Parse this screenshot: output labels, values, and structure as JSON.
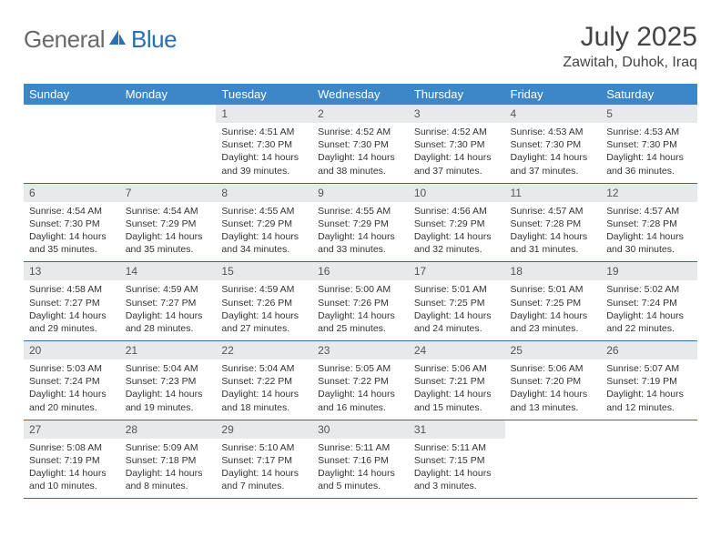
{
  "brand": {
    "general": "General",
    "blue": "Blue"
  },
  "title": "July 2025",
  "location": "Zawitah, Duhok, Iraq",
  "colors": {
    "header_bg": "#3b87c8",
    "header_text": "#ffffff",
    "daynum_bg": "#e7e9eb",
    "rule": "#2f6da3",
    "logo_gray": "#6a6a6a",
    "logo_blue": "#2a6fb0"
  },
  "weekdays": [
    "Sunday",
    "Monday",
    "Tuesday",
    "Wednesday",
    "Thursday",
    "Friday",
    "Saturday"
  ],
  "weeks": [
    [
      null,
      null,
      {
        "n": "1",
        "sr": "4:51 AM",
        "ss": "7:30 PM",
        "dl": "14 hours and 39 minutes."
      },
      {
        "n": "2",
        "sr": "4:52 AM",
        "ss": "7:30 PM",
        "dl": "14 hours and 38 minutes."
      },
      {
        "n": "3",
        "sr": "4:52 AM",
        "ss": "7:30 PM",
        "dl": "14 hours and 37 minutes."
      },
      {
        "n": "4",
        "sr": "4:53 AM",
        "ss": "7:30 PM",
        "dl": "14 hours and 37 minutes."
      },
      {
        "n": "5",
        "sr": "4:53 AM",
        "ss": "7:30 PM",
        "dl": "14 hours and 36 minutes."
      }
    ],
    [
      {
        "n": "6",
        "sr": "4:54 AM",
        "ss": "7:30 PM",
        "dl": "14 hours and 35 minutes."
      },
      {
        "n": "7",
        "sr": "4:54 AM",
        "ss": "7:29 PM",
        "dl": "14 hours and 35 minutes."
      },
      {
        "n": "8",
        "sr": "4:55 AM",
        "ss": "7:29 PM",
        "dl": "14 hours and 34 minutes."
      },
      {
        "n": "9",
        "sr": "4:55 AM",
        "ss": "7:29 PM",
        "dl": "14 hours and 33 minutes."
      },
      {
        "n": "10",
        "sr": "4:56 AM",
        "ss": "7:29 PM",
        "dl": "14 hours and 32 minutes."
      },
      {
        "n": "11",
        "sr": "4:57 AM",
        "ss": "7:28 PM",
        "dl": "14 hours and 31 minutes."
      },
      {
        "n": "12",
        "sr": "4:57 AM",
        "ss": "7:28 PM",
        "dl": "14 hours and 30 minutes."
      }
    ],
    [
      {
        "n": "13",
        "sr": "4:58 AM",
        "ss": "7:27 PM",
        "dl": "14 hours and 29 minutes."
      },
      {
        "n": "14",
        "sr": "4:59 AM",
        "ss": "7:27 PM",
        "dl": "14 hours and 28 minutes."
      },
      {
        "n": "15",
        "sr": "4:59 AM",
        "ss": "7:26 PM",
        "dl": "14 hours and 27 minutes."
      },
      {
        "n": "16",
        "sr": "5:00 AM",
        "ss": "7:26 PM",
        "dl": "14 hours and 25 minutes."
      },
      {
        "n": "17",
        "sr": "5:01 AM",
        "ss": "7:25 PM",
        "dl": "14 hours and 24 minutes."
      },
      {
        "n": "18",
        "sr": "5:01 AM",
        "ss": "7:25 PM",
        "dl": "14 hours and 23 minutes."
      },
      {
        "n": "19",
        "sr": "5:02 AM",
        "ss": "7:24 PM",
        "dl": "14 hours and 22 minutes."
      }
    ],
    [
      {
        "n": "20",
        "sr": "5:03 AM",
        "ss": "7:24 PM",
        "dl": "14 hours and 20 minutes."
      },
      {
        "n": "21",
        "sr": "5:04 AM",
        "ss": "7:23 PM",
        "dl": "14 hours and 19 minutes."
      },
      {
        "n": "22",
        "sr": "5:04 AM",
        "ss": "7:22 PM",
        "dl": "14 hours and 18 minutes."
      },
      {
        "n": "23",
        "sr": "5:05 AM",
        "ss": "7:22 PM",
        "dl": "14 hours and 16 minutes."
      },
      {
        "n": "24",
        "sr": "5:06 AM",
        "ss": "7:21 PM",
        "dl": "14 hours and 15 minutes."
      },
      {
        "n": "25",
        "sr": "5:06 AM",
        "ss": "7:20 PM",
        "dl": "14 hours and 13 minutes."
      },
      {
        "n": "26",
        "sr": "5:07 AM",
        "ss": "7:19 PM",
        "dl": "14 hours and 12 minutes."
      }
    ],
    [
      {
        "n": "27",
        "sr": "5:08 AM",
        "ss": "7:19 PM",
        "dl": "14 hours and 10 minutes."
      },
      {
        "n": "28",
        "sr": "5:09 AM",
        "ss": "7:18 PM",
        "dl": "14 hours and 8 minutes."
      },
      {
        "n": "29",
        "sr": "5:10 AM",
        "ss": "7:17 PM",
        "dl": "14 hours and 7 minutes."
      },
      {
        "n": "30",
        "sr": "5:11 AM",
        "ss": "7:16 PM",
        "dl": "14 hours and 5 minutes."
      },
      {
        "n": "31",
        "sr": "5:11 AM",
        "ss": "7:15 PM",
        "dl": "14 hours and 3 minutes."
      },
      null,
      null
    ]
  ],
  "labels": {
    "sunrise": "Sunrise:",
    "sunset": "Sunset:",
    "daylight": "Daylight:"
  }
}
